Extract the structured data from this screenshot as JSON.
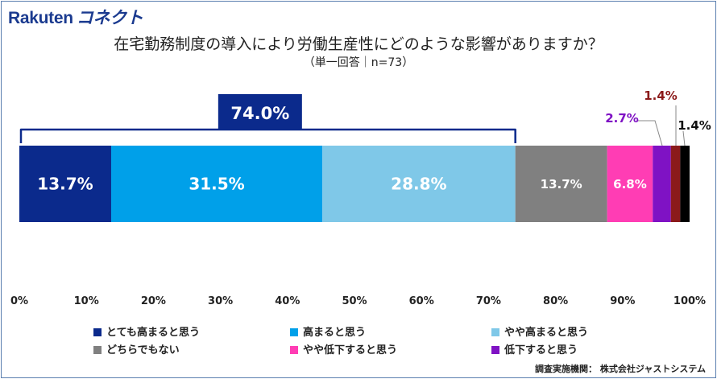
{
  "header": {
    "brand_primary": "Rakuten",
    "brand_secondary": "コネクト",
    "title": "在宅勤務制度の導入により労働生産性にどのような影響がありますか？",
    "subtitle": "（単一回答｜n=73）"
  },
  "chart_data": {
    "type": "bar",
    "orientation": "horizontal-stacked-100",
    "title": "在宅勤務制度の導入により労働生産性にどのような影響がありますか？",
    "subtitle": "（単一回答｜n=73）",
    "xlim": [
      0,
      100
    ],
    "x_ticks": [
      "0%",
      "10%",
      "20%",
      "30%",
      "40%",
      "50%",
      "60%",
      "70%",
      "80%",
      "90%",
      "100%"
    ],
    "grid": false,
    "legend_position": "bottom",
    "series": [
      {
        "name": "とても高まると思う",
        "value": 13.7,
        "label": "13.7%",
        "color": "#0b2a8c"
      },
      {
        "name": "高まると思う",
        "value": 31.5,
        "label": "31.5%",
        "color": "#00a0e9"
      },
      {
        "name": "やや高まると思う",
        "value": 28.8,
        "label": "28.8%",
        "color": "#7fc8e8"
      },
      {
        "name": "どちらでもない",
        "value": 13.7,
        "label": "13.7%",
        "color": "#808080"
      },
      {
        "name": "やや低下すると思う",
        "value": 6.8,
        "label": "6.8%",
        "color": "#ff3db4"
      },
      {
        "name": "低下すると思う",
        "value": 2.7,
        "label": "2.7%",
        "color": "#7f12c4"
      },
      {
        "name": "",
        "value": 1.4,
        "label": "1.4%",
        "color": "#8b1a1a"
      },
      {
        "name": "",
        "value": 1.4,
        "label": "1.4%",
        "color": "#000000"
      }
    ],
    "bracket_total": {
      "label": "74.0%",
      "range": [
        0,
        74.0
      ],
      "color": "#0b2a8c"
    }
  },
  "legend": [
    {
      "label": "とても高まると思う",
      "color": "#0b2a8c"
    },
    {
      "label": "高まると思う",
      "color": "#00a0e9"
    },
    {
      "label": "やや高まると思う",
      "color": "#7fc8e8"
    },
    {
      "label": "どちらでもない",
      "color": "#808080"
    },
    {
      "label": "やや低下すると思う",
      "color": "#ff3db4"
    },
    {
      "label": "低下すると思う",
      "color": "#7f12c4"
    }
  ],
  "source": "調査実施機関： 株式会社ジャストシステム"
}
